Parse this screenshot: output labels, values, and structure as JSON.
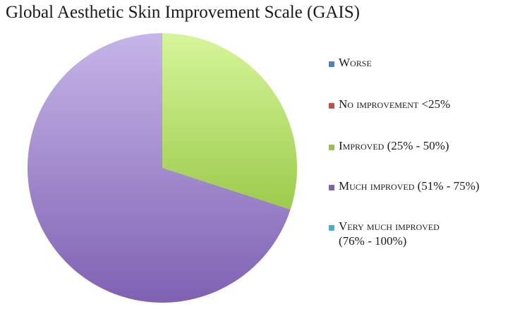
{
  "chart_data": {
    "type": "pie",
    "title": "Global Aesthetic Skin Improvement Scale (GAIS)",
    "categories": [
      "Worse",
      "No improvement <25%",
      "Improved (25% - 50%)",
      "Much improved (51% - 75%)",
      "Very much improved\n(76% - 100%)"
    ],
    "values": [
      0,
      0,
      30,
      70,
      0
    ],
    "colors": [
      "#4f81bd",
      "#c0504d",
      "#9bbb59",
      "#8064a2",
      "#4bacc6"
    ],
    "slice_gradients": {
      "Improved (25% - 50%)": [
        "#d6f59a",
        "#9ccb4c"
      ],
      "Much improved (51% - 75%)": [
        "#c6b5e8",
        "#7f61b3"
      ]
    },
    "legend_position": "right"
  }
}
